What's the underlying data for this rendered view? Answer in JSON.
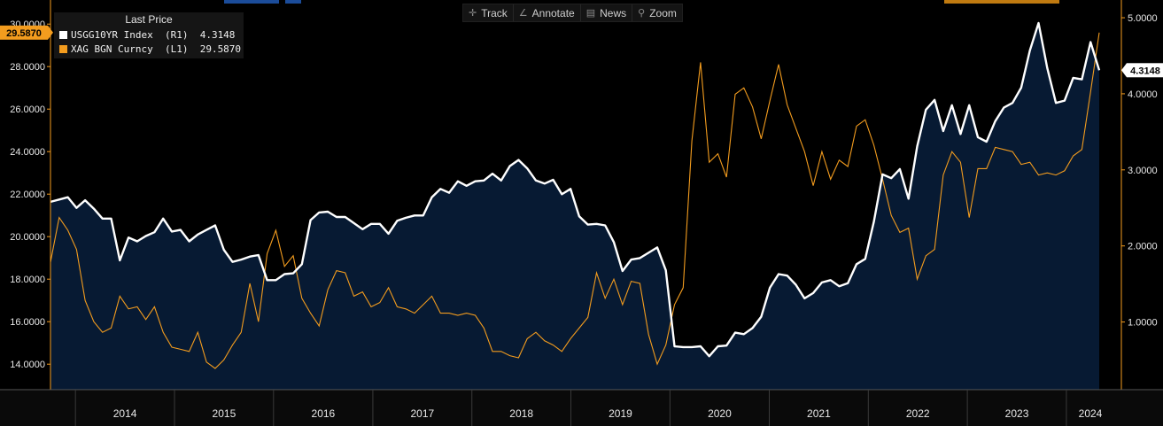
{
  "toolbar": [
    {
      "label": "Track",
      "icon": "crosshair-icon",
      "glyph": "✛"
    },
    {
      "label": "Annotate",
      "icon": "pencil-icon",
      "glyph": "∠"
    },
    {
      "label": "News",
      "icon": "news-icon",
      "glyph": "▤"
    },
    {
      "label": "Zoom",
      "icon": "zoom-icon",
      "glyph": "⚲"
    }
  ],
  "legend": {
    "title": "Last Price",
    "rows": [
      {
        "text": "USGG10YR Index  (R1)  4.3148",
        "color": "#ffffff"
      },
      {
        "text": "XAG BGN Curncy  (L1)  29.5870",
        "color": "#f39c1e"
      }
    ]
  },
  "colors": {
    "fill": "#071a33",
    "silver": "#f39c1e",
    "yield": "#ffffff",
    "axis": "#f39c1e"
  },
  "chart_data": {
    "type": "line",
    "x_start": "2013-10",
    "x_end": "2024-05",
    "xticks": [
      "2014",
      "2015",
      "2016",
      "2017",
      "2018",
      "2019",
      "2020",
      "2021",
      "2022",
      "2023",
      "2024"
    ],
    "left_axis": {
      "ticks": [
        "14.0000",
        "16.0000",
        "18.0000",
        "20.0000",
        "22.0000",
        "24.0000",
        "26.0000",
        "28.0000",
        "30.0000"
      ],
      "ylim": [
        12.8,
        30.8
      ]
    },
    "right_axis": {
      "ticks": [
        "1.0000",
        "2.0000",
        "3.0000",
        "4.0000",
        "5.0000"
      ],
      "ylim": [
        0.11,
        5.14
      ]
    },
    "last_tags": {
      "left": "29.5870",
      "right": "4.3148"
    },
    "series": [
      {
        "name": "USGG10YR Index",
        "axis": "right",
        "style": "area",
        "values": [
          2.58,
          2.61,
          2.64,
          2.5,
          2.6,
          2.49,
          2.36,
          2.36,
          1.81,
          2.11,
          2.06,
          2.13,
          2.18,
          2.36,
          2.19,
          2.21,
          2.06,
          2.15,
          2.21,
          2.27,
          1.95,
          1.79,
          1.82,
          1.86,
          1.88,
          1.55,
          1.55,
          1.63,
          1.64,
          1.76,
          2.34,
          2.44,
          2.45,
          2.38,
          2.38,
          2.3,
          2.22,
          2.29,
          2.29,
          2.16,
          2.33,
          2.37,
          2.4,
          2.4,
          2.64,
          2.75,
          2.7,
          2.85,
          2.79,
          2.85,
          2.86,
          2.95,
          2.86,
          3.05,
          3.13,
          3.02,
          2.86,
          2.82,
          2.87,
          2.68,
          2.75,
          2.39,
          2.28,
          2.29,
          2.27,
          2.05,
          1.67,
          1.82,
          1.84,
          1.91,
          1.98,
          1.68,
          0.68,
          0.67,
          0.67,
          0.68,
          0.55,
          0.68,
          0.69,
          0.86,
          0.84,
          0.92,
          1.07,
          1.45,
          1.63,
          1.61,
          1.49,
          1.31,
          1.38,
          1.52,
          1.55,
          1.47,
          1.51,
          1.76,
          1.83,
          2.32,
          2.94,
          2.89,
          3.01,
          2.62,
          3.31,
          3.79,
          3.92,
          3.51,
          3.85,
          3.47,
          3.85,
          3.43,
          3.37,
          3.64,
          3.82,
          3.88,
          4.08,
          4.57,
          4.93,
          4.34,
          3.88,
          3.91,
          4.21,
          4.19,
          4.68,
          4.31
        ]
      },
      {
        "name": "XAG BGN Curncy",
        "axis": "left",
        "style": "line",
        "values": [
          18.8,
          20.9,
          20.3,
          19.4,
          17.0,
          16.0,
          15.5,
          15.7,
          17.2,
          16.6,
          16.7,
          16.1,
          16.7,
          15.5,
          14.8,
          14.7,
          14.6,
          15.5,
          14.1,
          13.8,
          14.2,
          14.9,
          15.5,
          17.8,
          16.0,
          19.2,
          20.3,
          18.6,
          19.1,
          17.1,
          16.4,
          15.8,
          17.5,
          18.4,
          18.3,
          17.2,
          17.4,
          16.7,
          16.9,
          17.6,
          16.7,
          16.6,
          16.4,
          16.8,
          17.2,
          16.4,
          16.4,
          16.3,
          16.4,
          16.3,
          15.7,
          14.6,
          14.6,
          14.4,
          14.3,
          15.2,
          15.5,
          15.1,
          14.9,
          14.6,
          15.2,
          15.7,
          16.2,
          18.3,
          17.1,
          18.0,
          16.8,
          17.9,
          17.8,
          15.4,
          14.0,
          14.9,
          16.8,
          17.6,
          24.5,
          28.2,
          23.5,
          23.9,
          22.8,
          26.7,
          27.0,
          26.1,
          24.6,
          26.4,
          28.1,
          26.2,
          25.1,
          24.0,
          22.4,
          24.0,
          22.7,
          23.6,
          23.3,
          25.2,
          25.5,
          24.3,
          22.7,
          21.0,
          20.2,
          20.4,
          18.0,
          19.1,
          19.4,
          22.9,
          24.0,
          23.5,
          20.9,
          23.2,
          23.2,
          24.2,
          24.1,
          24.0,
          23.4,
          23.5,
          22.9,
          23.0,
          22.9,
          23.1,
          23.8,
          24.1,
          26.8,
          29.6
        ]
      }
    ]
  }
}
